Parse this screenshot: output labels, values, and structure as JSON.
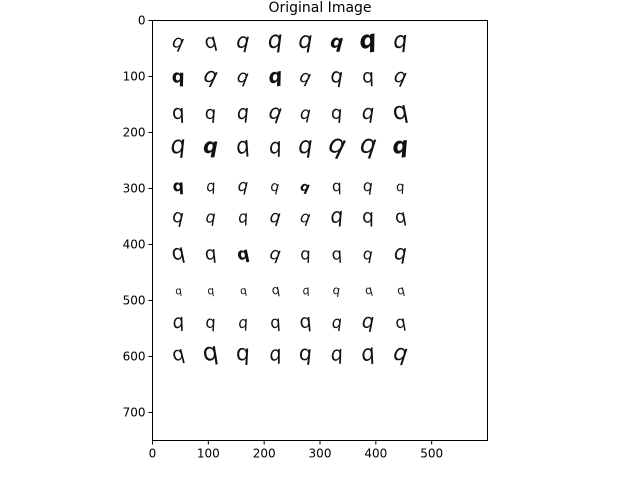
{
  "figure": {
    "title": "Original Image"
  },
  "chart_data": {
    "type": "image",
    "title": "Original Image",
    "xlabel": "",
    "ylabel": "",
    "xlim": [
      0,
      600
    ],
    "ylim": [
      750,
      0
    ],
    "y_inverted": true,
    "x_ticks": [
      0,
      100,
      200,
      300,
      400,
      500
    ],
    "y_ticks": [
      0,
      100,
      200,
      300,
      400,
      500,
      600,
      700
    ],
    "grid": false,
    "content": {
      "description_rows": 10,
      "description_cols": 8,
      "cell_text": [
        [
          "q",
          "q",
          "q",
          "q",
          "q",
          "q",
          "q",
          "q"
        ],
        [
          "q",
          "q",
          "q",
          "q",
          "q",
          "q",
          "q",
          "q"
        ],
        [
          "q",
          "q",
          "q",
          "q",
          "q",
          "q",
          "q",
          "q"
        ],
        [
          "q",
          "q",
          "q",
          "q",
          "q",
          "q",
          "q",
          "q"
        ],
        [
          "q",
          "q",
          "q",
          "q",
          "q",
          "q",
          "q",
          "q"
        ],
        [
          "q",
          "q",
          "q",
          "q",
          "q",
          "q",
          "q",
          "q"
        ],
        [
          "q",
          "q",
          "q",
          "q",
          "q",
          "q",
          "q",
          "q"
        ],
        [
          "q",
          "q",
          "q",
          "q",
          "q",
          "q",
          "q",
          "q"
        ],
        [
          "q",
          "q",
          "q",
          "q",
          "q",
          "q",
          "q",
          "q"
        ],
        [
          "q",
          "q",
          "q",
          "q",
          "q",
          "q",
          "q",
          "q"
        ]
      ]
    },
    "colors": {
      "ink": "#111111",
      "axis": "#000000",
      "background": "#ffffff"
    }
  }
}
